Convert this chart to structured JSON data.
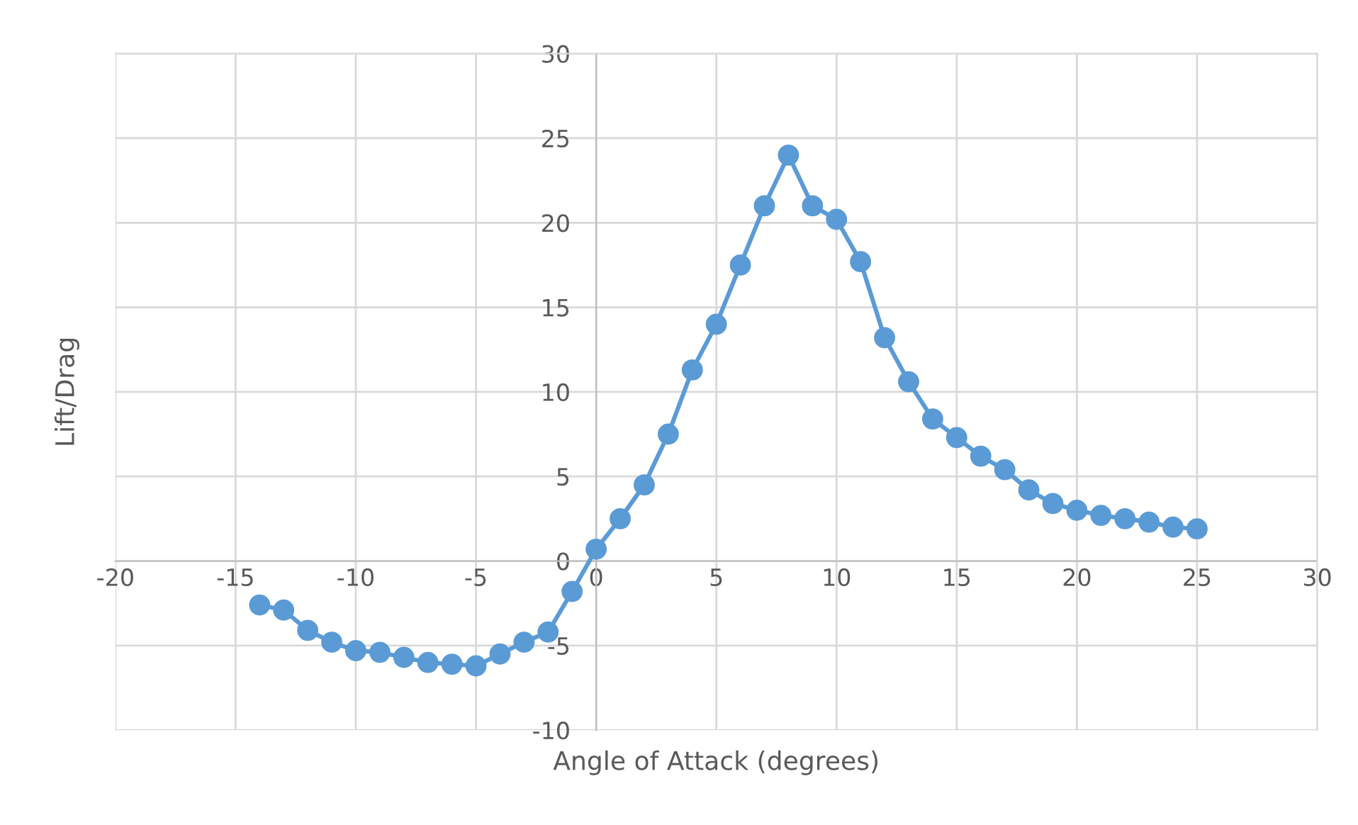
{
  "chart_data": {
    "type": "line",
    "xlabel": "Angle of Attack (degrees)",
    "ylabel": "Lift/Drag",
    "x": [
      -14,
      -13,
      -12,
      -11,
      -10,
      -9,
      -8,
      -7,
      -6,
      -5,
      -4,
      -3,
      -2,
      -1,
      0,
      1,
      2,
      3,
      4,
      5,
      6,
      7,
      8,
      9,
      10,
      11,
      12,
      13,
      14,
      15,
      16,
      17,
      18,
      19,
      20,
      21,
      22,
      23,
      24,
      25
    ],
    "series": [
      {
        "color": "#5b9bd5",
        "values": [
          -2.6,
          -2.9,
          -4.1,
          -4.8,
          -5.3,
          -5.4,
          -5.7,
          -6.0,
          -6.1,
          -6.2,
          -5.5,
          -4.8,
          -4.2,
          -1.8,
          0.7,
          2.5,
          4.5,
          7.5,
          11.3,
          14.0,
          17.5,
          21.0,
          24.0,
          21.0,
          20.2,
          17.7,
          13.2,
          10.6,
          8.4,
          7.3,
          6.2,
          5.4,
          4.2,
          3.4,
          3.0,
          2.7,
          2.5,
          2.3,
          2.0,
          1.9
        ]
      }
    ],
    "xlim": [
      -20,
      30
    ],
    "xticks": [
      -20,
      -15,
      -10,
      -5,
      0,
      5,
      10,
      15,
      20,
      25,
      30
    ],
    "ylim": [
      -10,
      30
    ],
    "yticks": [
      -10,
      -5,
      0,
      5,
      10,
      15,
      20,
      25,
      30
    ],
    "grid": true,
    "marker": "circle",
    "line_style": "solid"
  }
}
